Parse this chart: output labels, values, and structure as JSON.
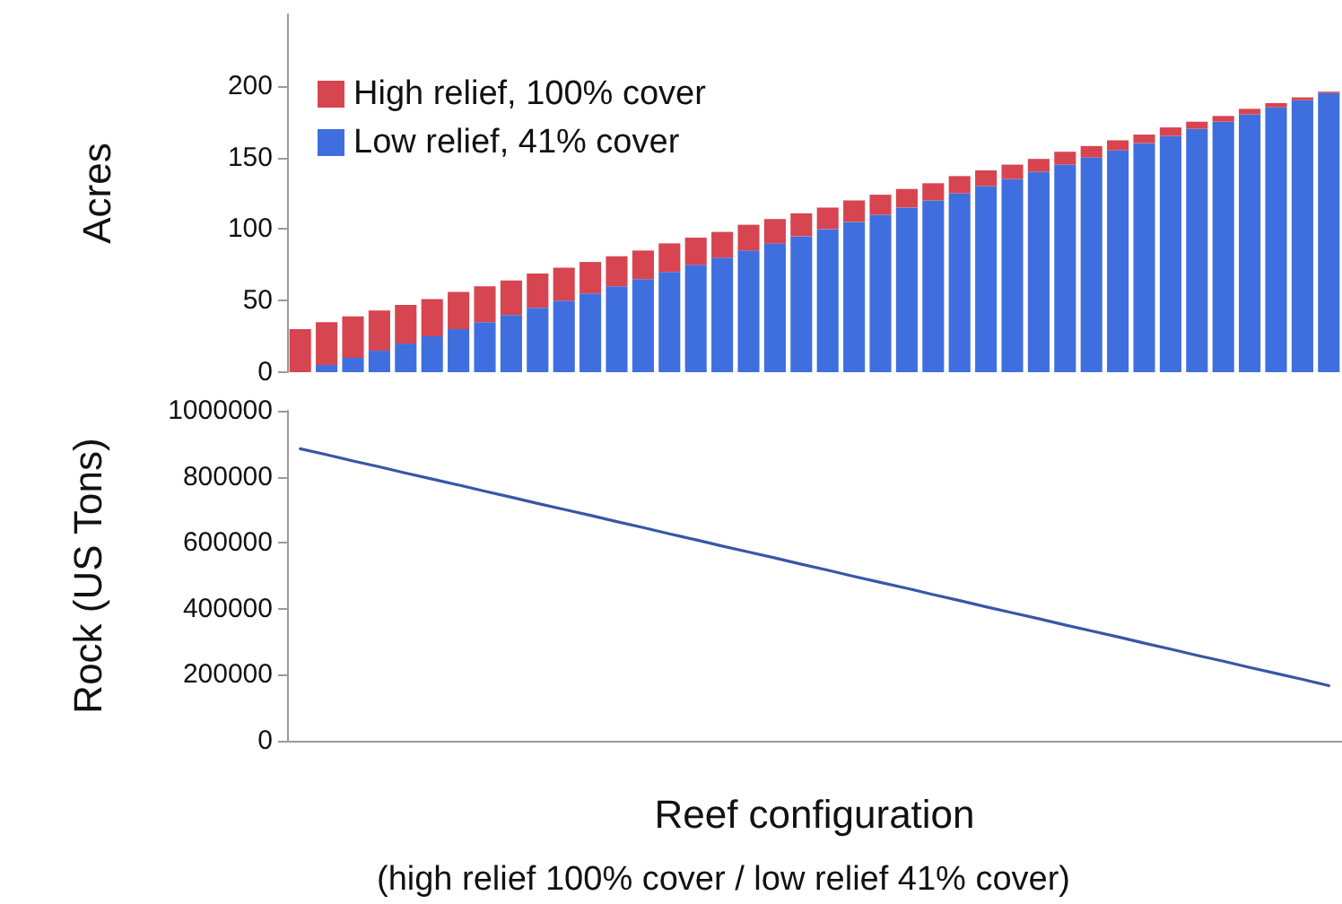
{
  "chart_data": [
    {
      "type": "bar",
      "stacked": true,
      "ylabel": "Acres",
      "categories": [
        null,
        null,
        null,
        null,
        null,
        null,
        null,
        null,
        null,
        null,
        null,
        null,
        null,
        null,
        null,
        null,
        null,
        null,
        null,
        null,
        null,
        null,
        null,
        null,
        null,
        null,
        null,
        null,
        null,
        null,
        null,
        null,
        null,
        null,
        null,
        null,
        null,
        null,
        null,
        null
      ],
      "ylim": [
        0,
        250
      ],
      "yticks": [
        0,
        50,
        100,
        150,
        200
      ],
      "grid": false,
      "legend": "top left",
      "tick_labels": "y",
      "series": [
        {
          "name": "Low relief, 41% cover",
          "color": "#3f6fde",
          "values": [
            0,
            5,
            10,
            15,
            20,
            25,
            30,
            35,
            40,
            45,
            50,
            55,
            60,
            65,
            70,
            75,
            80,
            85,
            90,
            95,
            100,
            105,
            110,
            115,
            120,
            125,
            130,
            135,
            140,
            145,
            150,
            155,
            160,
            165,
            170,
            175,
            180,
            185,
            190,
            195
          ]
        },
        {
          "name": "High relief, 100% cover",
          "color": "#d64550",
          "values": [
            30,
            30,
            29,
            28,
            27,
            26,
            26,
            25,
            24,
            24,
            23,
            22,
            21,
            20,
            20,
            19,
            18,
            18,
            17,
            16,
            15,
            15,
            14,
            13,
            12,
            12,
            11,
            10,
            9,
            9,
            8,
            7,
            6,
            6,
            5,
            4,
            4,
            3,
            2,
            1
          ]
        }
      ]
    },
    {
      "type": "line",
      "ylabel": "Rock (US Tons)",
      "xlabel": "Reef configuration",
      "annotations": [
        "(high relief 100% cover / low relief 41% cover)"
      ],
      "categories": [
        null,
        null,
        null,
        null,
        null,
        null,
        null,
        null,
        null,
        null,
        null,
        null,
        null,
        null,
        null,
        null,
        null,
        null,
        null,
        null,
        null,
        null,
        null,
        null,
        null,
        null,
        null,
        null,
        null,
        null,
        null,
        null,
        null,
        null,
        null,
        null,
        null,
        null,
        null,
        null
      ],
      "ylim": [
        0,
        1000000
      ],
      "yticks": [
        0,
        200000,
        400000,
        600000,
        800000,
        1000000
      ],
      "grid": false,
      "marker": "none",
      "line_style": "solid",
      "tick_labels": "y",
      "series": [
        {
          "color": "#3a55a8",
          "values": [
            885000,
            867000,
            848000,
            830000,
            811000,
            793000,
            775000,
            756000,
            738000,
            719000,
            701000,
            683000,
            664000,
            646000,
            627000,
            609000,
            590000,
            572000,
            554000,
            535000,
            517000,
            498000,
            480000,
            462000,
            443000,
            425000,
            406000,
            388000,
            370000,
            351000,
            333000,
            315000,
            296000,
            278000,
            259000,
            241000,
            222000,
            204000,
            186000,
            167000
          ]
        }
      ]
    }
  ]
}
